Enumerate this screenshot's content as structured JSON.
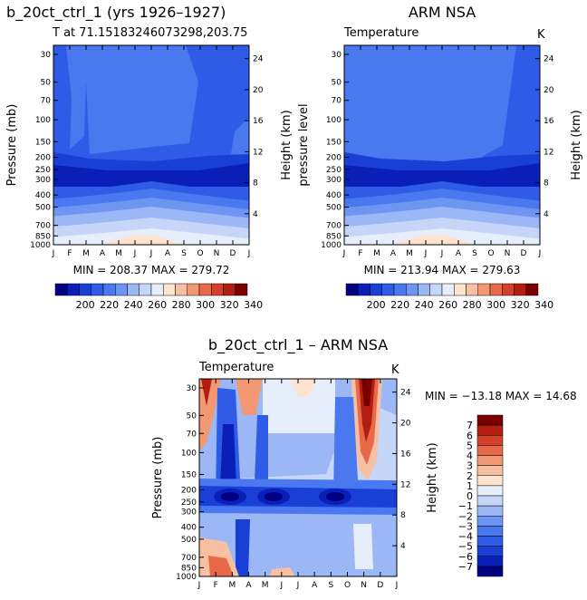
{
  "colors": {
    "scale": [
      "#000080",
      "#0a1fb8",
      "#1a3fd6",
      "#2e5ce6",
      "#4a78ee",
      "#6f95f2",
      "#9cb7f5",
      "#c6d6f8",
      "#e6eefb",
      "#fde3d0",
      "#f8c0a2",
      "#f29872",
      "#e8694a",
      "#d5402a",
      "#b31d12",
      "#7a0000"
    ],
    "diff_scale": [
      "#000080",
      "#0a1fb8",
      "#1a3fd6",
      "#2e5ce6",
      "#4a78ee",
      "#6f95f2",
      "#9cb7f5",
      "#c6d6f8",
      "#e6eefb",
      "#fde3d0",
      "#f8c0a2",
      "#f29872",
      "#e8694a",
      "#d5402a",
      "#b31d12",
      "#7a0000"
    ]
  },
  "panels": {
    "model": {
      "title": "b_20ct_ctrl_1 (yrs 1926–1927)",
      "subtitle": "T at 71.15183246073298,203.75",
      "ylabel": "Pressure (mb)",
      "ylabel_right": "Height (km)",
      "stats": "MIN = 208.37  MAX = 279.72"
    },
    "obs": {
      "title": "ARM NSA",
      "field": "Temperature",
      "unit": "K",
      "ylabel": "pressure level",
      "ylabel_right": "Height (km)",
      "stats": "MIN = 213.94  MAX = 279.63"
    },
    "diff": {
      "title": "b_20ct_ctrl_1 – ARM NSA",
      "field": "Temperature",
      "unit": "K",
      "ylabel": "Pressure (mb)",
      "ylabel_right": "Height (km)",
      "stats": "MIN = −13.18  MAX =  14.68"
    }
  },
  "chart_data": [
    {
      "type": "heatmap",
      "title": "b_20ct_ctrl_1 (yrs 1926–1927)",
      "x": [
        "J",
        "F",
        "M",
        "A",
        "M",
        "J",
        "J",
        "A",
        "S",
        "O",
        "N",
        "D",
        "J"
      ],
      "y_pressure_mb": [
        30,
        50,
        70,
        100,
        150,
        200,
        250,
        300,
        400,
        500,
        700,
        850,
        1000
      ],
      "y_height_km": [
        4,
        8,
        12,
        16,
        20,
        24
      ],
      "min": 208.37,
      "max": 279.72,
      "colorbar_ticks": [
        "200",
        "220",
        "240",
        "260",
        "280",
        "300",
        "320",
        "340"
      ]
    },
    {
      "type": "heatmap",
      "title": "ARM NSA",
      "x": [
        "J",
        "F",
        "M",
        "A",
        "M",
        "J",
        "J",
        "A",
        "S",
        "O",
        "N",
        "D",
        "J"
      ],
      "y_pressure_mb": [
        30,
        50,
        70,
        100,
        150,
        200,
        250,
        300,
        400,
        500,
        700,
        850,
        1000
      ],
      "y_height_km": [
        4,
        8,
        12,
        16,
        20,
        24
      ],
      "min": 213.94,
      "max": 279.63,
      "colorbar_ticks": [
        "200",
        "220",
        "240",
        "260",
        "280",
        "300",
        "320",
        "340"
      ]
    },
    {
      "type": "heatmap",
      "title": "b_20ct_ctrl_1 – ARM NSA",
      "x": [
        "J",
        "F",
        "M",
        "A",
        "M",
        "J",
        "J",
        "A",
        "S",
        "O",
        "N",
        "D",
        "J"
      ],
      "y_pressure_mb": [
        30,
        50,
        70,
        100,
        150,
        200,
        250,
        300,
        400,
        500,
        700,
        850,
        1000
      ],
      "y_height_km": [
        4,
        8,
        12,
        16,
        20,
        24
      ],
      "min": -13.18,
      "max": 14.68,
      "colorbar_ticks": [
        "7",
        "6",
        "5",
        "4",
        "3",
        "2",
        "1",
        "0",
        "−1",
        "−2",
        "−3",
        "−4",
        "−5",
        "−6",
        "−7"
      ]
    }
  ]
}
